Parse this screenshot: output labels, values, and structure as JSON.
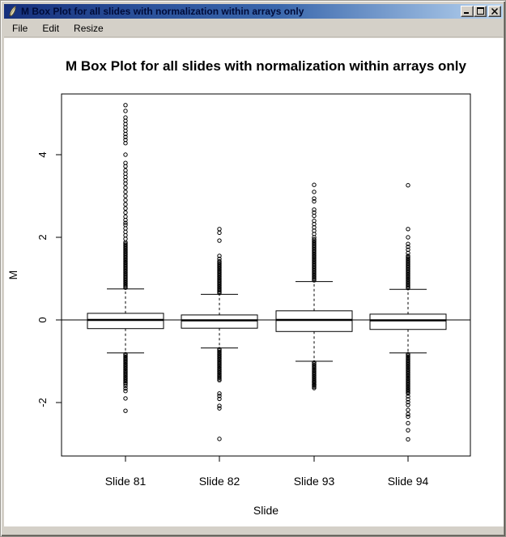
{
  "window": {
    "title": "M Box Plot for all slides with normalization within arrays only",
    "icon": "feather-quill-icon",
    "controls": [
      {
        "name": "minimize",
        "icon": "minimize-icon"
      },
      {
        "name": "maximize",
        "icon": "maximize-icon"
      },
      {
        "name": "close",
        "icon": "close-icon"
      }
    ],
    "titlebar_gradient": [
      "#16307c",
      "#b8d4f0"
    ],
    "chrome_color": "#d4d0c8"
  },
  "menu": {
    "items": [
      {
        "label": "File"
      },
      {
        "label": "Edit"
      },
      {
        "label": "Resize"
      }
    ]
  },
  "chart_data": {
    "type": "boxplot",
    "title": "M Box Plot for all slides with normalization within arrays only",
    "xlabel": "Slide",
    "ylabel": "M",
    "ylim": [
      -3.29,
      5.47
    ],
    "yticks": [
      -2,
      0,
      2,
      4
    ],
    "reference_line_y": 0,
    "grid": false,
    "categories": [
      "Slide 81",
      "Slide 82",
      "Slide 93",
      "Slide 94"
    ],
    "series": [
      {
        "name": "Slide 81",
        "median": 0.0,
        "q1": -0.21,
        "q3": 0.16,
        "whisker_low": -0.8,
        "whisker_high": 0.75,
        "outliers": [
          5.2,
          5.06,
          4.9,
          4.82,
          4.74,
          4.66,
          4.58,
          4.5,
          4.43,
          4.36,
          4.28,
          4.0,
          3.8,
          3.72,
          3.62,
          3.54,
          3.46,
          3.38,
          3.3,
          3.2,
          3.1,
          3.0,
          2.9,
          2.8,
          2.7,
          2.6,
          2.5,
          2.42,
          2.35,
          -1.6,
          -1.66,
          -1.72,
          -1.9,
          -2.2
        ],
        "dense": [
          {
            "from": 0.78,
            "to": 1.85,
            "n": 36
          },
          {
            "from": 1.88,
            "to": 2.3,
            "n": 6
          },
          {
            "from": -0.83,
            "to": -1.55,
            "n": 24
          }
        ]
      },
      {
        "name": "Slide 82",
        "median": -0.01,
        "q1": -0.2,
        "q3": 0.12,
        "whisker_low": -0.68,
        "whisker_high": 0.62,
        "outliers": [
          2.2,
          2.11,
          1.92,
          1.55,
          1.48,
          -1.78,
          -1.84,
          -1.91,
          -2.08,
          -2.14,
          -2.88
        ],
        "dense": [
          {
            "from": 0.65,
            "to": 1.42,
            "n": 26
          },
          {
            "from": -0.71,
            "to": -1.46,
            "n": 25
          }
        ]
      },
      {
        "name": "Slide 93",
        "median": 0.0,
        "q1": -0.28,
        "q3": 0.22,
        "whisker_low": -1.0,
        "whisker_high": 0.93,
        "outliers": [
          3.27,
          3.1,
          2.94,
          2.87,
          2.67,
          2.6,
          2.52,
          2.4,
          2.32,
          2.24,
          2.16,
          2.08,
          2.0,
          -1.5,
          -1.57,
          -1.65
        ],
        "dense": [
          {
            "from": 0.96,
            "to": 1.95,
            "n": 34
          },
          {
            "from": -1.03,
            "to": -1.62,
            "n": 20
          }
        ]
      },
      {
        "name": "Slide 94",
        "median": -0.01,
        "q1": -0.23,
        "q3": 0.14,
        "whisker_low": -0.8,
        "whisker_high": 0.74,
        "outliers": [
          3.26,
          2.2,
          2.0,
          1.84,
          1.77,
          1.7,
          1.62,
          1.55,
          -1.85,
          -1.92,
          -1.99,
          -2.06,
          -2.18,
          -2.28,
          -2.34,
          -2.5,
          -2.67,
          -2.89
        ],
        "dense": [
          {
            "from": 0.77,
            "to": 1.52,
            "n": 26
          },
          {
            "from": -0.83,
            "to": -1.78,
            "n": 32
          }
        ]
      }
    ]
  }
}
